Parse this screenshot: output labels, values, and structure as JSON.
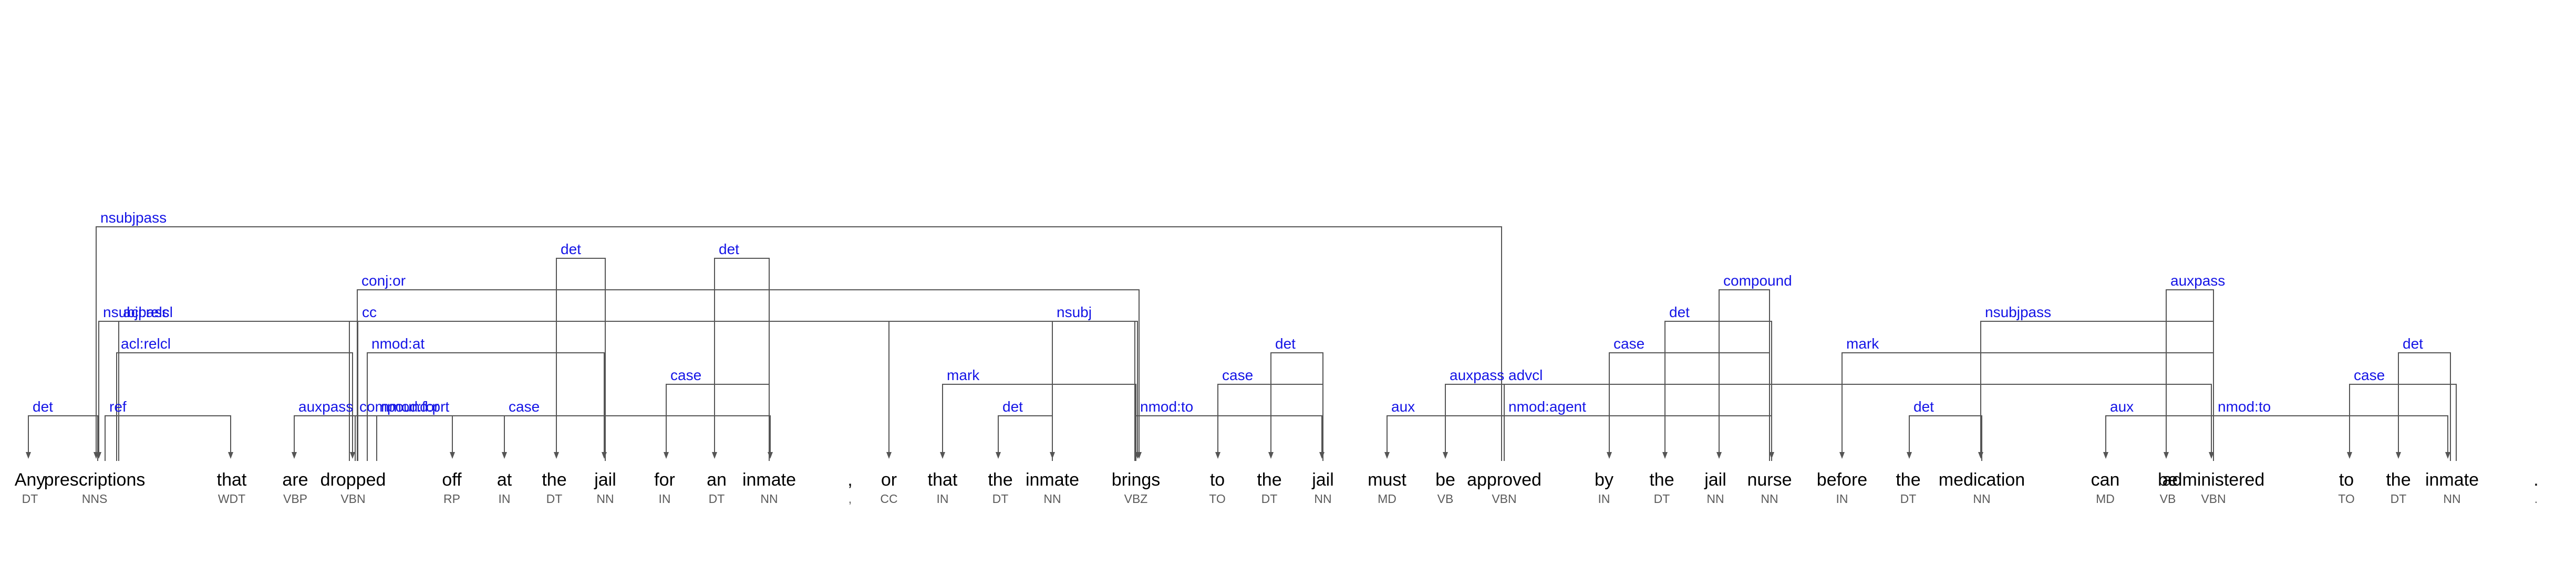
{
  "tokens": [
    {
      "word": "Any",
      "pos": "DT"
    },
    {
      "word": "prescriptions",
      "pos": "NNS"
    },
    {
      "word": "that",
      "pos": "WDT"
    },
    {
      "word": "are",
      "pos": "VBP"
    },
    {
      "word": "dropped",
      "pos": "VBN"
    },
    {
      "word": "off",
      "pos": "RP"
    },
    {
      "word": "at",
      "pos": "IN"
    },
    {
      "word": "the",
      "pos": "DT"
    },
    {
      "word": "jail",
      "pos": "NN"
    },
    {
      "word": "for",
      "pos": "IN"
    },
    {
      "word": "an",
      "pos": "DT"
    },
    {
      "word": "inmate",
      "pos": "NN"
    },
    {
      "word": ",",
      "pos": ","
    },
    {
      "word": "or",
      "pos": "CC"
    },
    {
      "word": "that",
      "pos": "IN"
    },
    {
      "word": "the",
      "pos": "DT"
    },
    {
      "word": "inmate",
      "pos": "NN"
    },
    {
      "word": "brings",
      "pos": "VBZ"
    },
    {
      "word": "to",
      "pos": "TO"
    },
    {
      "word": "the",
      "pos": "DT"
    },
    {
      "word": "jail",
      "pos": "NN"
    },
    {
      "word": "must",
      "pos": "MD"
    },
    {
      "word": "be",
      "pos": "VB"
    },
    {
      "word": "approved",
      "pos": "VBN"
    },
    {
      "word": "by",
      "pos": "IN"
    },
    {
      "word": "the",
      "pos": "DT"
    },
    {
      "word": "jail",
      "pos": "NN"
    },
    {
      "word": "nurse",
      "pos": "NN"
    },
    {
      "word": "before",
      "pos": "IN"
    },
    {
      "word": "the",
      "pos": "DT"
    },
    {
      "word": "medication",
      "pos": "NN"
    },
    {
      "word": "can",
      "pos": "MD"
    },
    {
      "word": "be",
      "pos": "VB"
    },
    {
      "word": "administered",
      "pos": "VBN"
    },
    {
      "word": "to",
      "pos": "TO"
    },
    {
      "word": "the",
      "pos": "DT"
    },
    {
      "word": "inmate",
      "pos": "NN"
    },
    {
      "word": ".",
      "pos": "."
    }
  ],
  "arcs": [
    {
      "label": "det",
      "head": 1,
      "dep": 0
    },
    {
      "label": "ref",
      "head": 1,
      "dep": 2
    },
    {
      "label": "acl:relcl",
      "head": 1,
      "dep": 4
    },
    {
      "label": "acl:relcl",
      "head": 1,
      "dep": 17
    },
    {
      "label": "nsubjpass",
      "head": 4,
      "dep": 1
    },
    {
      "label": "nsubjpass",
      "head": 23,
      "dep": 1
    },
    {
      "label": "auxpass",
      "head": 4,
      "dep": 3
    },
    {
      "label": "compound:prt",
      "head": 4,
      "dep": 5
    },
    {
      "label": "nmod:at",
      "head": 4,
      "dep": 8
    },
    {
      "label": "nmod:for",
      "head": 4,
      "dep": 11
    },
    {
      "label": "cc",
      "head": 4,
      "dep": 13
    },
    {
      "label": "conj:or",
      "head": 4,
      "dep": 17
    },
    {
      "label": "case",
      "head": 8,
      "dep": 6
    },
    {
      "label": "det",
      "head": 8,
      "dep": 7
    },
    {
      "label": "case",
      "head": 11,
      "dep": 9
    },
    {
      "label": "det",
      "head": 11,
      "dep": 10
    },
    {
      "label": "mark",
      "head": 17,
      "dep": 14
    },
    {
      "label": "det",
      "head": 16,
      "dep": 15
    },
    {
      "label": "nsubj",
      "head": 17,
      "dep": 16
    },
    {
      "label": "nmod:to",
      "head": 17,
      "dep": 20
    },
    {
      "label": "case",
      "head": 20,
      "dep": 18
    },
    {
      "label": "det",
      "head": 20,
      "dep": 19
    },
    {
      "label": "aux",
      "head": 23,
      "dep": 21
    },
    {
      "label": "auxpass",
      "head": 23,
      "dep": 22
    },
    {
      "label": "nmod:agent",
      "head": 23,
      "dep": 27
    },
    {
      "label": "advcl",
      "head": 23,
      "dep": 33
    },
    {
      "label": "case",
      "head": 27,
      "dep": 24
    },
    {
      "label": "det",
      "head": 27,
      "dep": 25
    },
    {
      "label": "compound",
      "head": 27,
      "dep": 26
    },
    {
      "label": "mark",
      "head": 33,
      "dep": 28
    },
    {
      "label": "det",
      "head": 30,
      "dep": 29
    },
    {
      "label": "nsubjpass",
      "head": 33,
      "dep": 30
    },
    {
      "label": "aux",
      "head": 33,
      "dep": 31
    },
    {
      "label": "auxpass",
      "head": 33,
      "dep": 32
    },
    {
      "label": "nmod:to",
      "head": 33,
      "dep": 36
    },
    {
      "label": "case",
      "head": 36,
      "dep": 34
    },
    {
      "label": "det",
      "head": 36,
      "dep": 35
    }
  ]
}
